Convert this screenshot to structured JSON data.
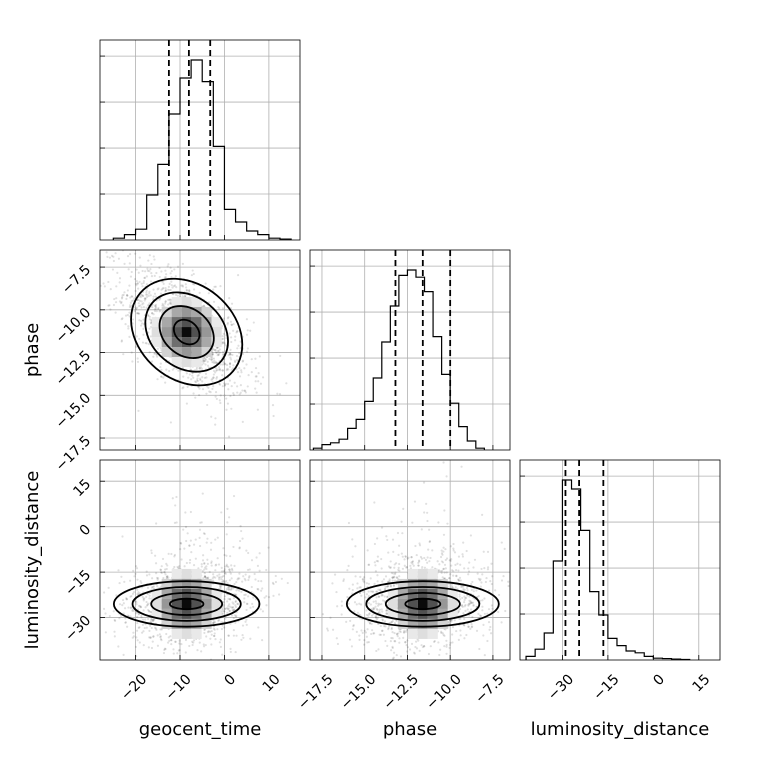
{
  "chart_data": {
    "type": "corner",
    "parameters": [
      "geocent_time",
      "phase",
      "luminosity_distance"
    ],
    "axes": {
      "geocent_time": {
        "range": [
          -28,
          17
        ],
        "ticks": [
          -20,
          -10,
          0,
          10
        ],
        "tick_labels": [
          "−20",
          "−10",
          "0",
          "10"
        ]
      },
      "phase": {
        "range": [
          -18.2,
          -6.5
        ],
        "ticks": [
          -17.5,
          -15.0,
          -12.5,
          -10.0,
          -7.5
        ],
        "tick_labels": [
          "−17.5",
          "−15.0",
          "−12.5",
          "−10.0",
          "−7.5"
        ]
      },
      "luminosity_distance": {
        "range": [
          -44,
          22
        ],
        "ticks": [
          -30,
          -15,
          0,
          15
        ],
        "tick_labels": [
          "−30",
          "−15",
          "0",
          "15"
        ]
      }
    },
    "histograms": [
      {
        "parameter": "geocent_time",
        "bin_edges": [
          -25,
          -22.5,
          -20,
          -17.5,
          -15,
          -12.5,
          -10,
          -7.5,
          -5,
          -2.5,
          0,
          2.5,
          5,
          7.5,
          10,
          12.5,
          15
        ],
        "counts": [
          0.01,
          0.03,
          0.06,
          0.25,
          0.42,
          0.7,
          0.9,
          1.0,
          0.88,
          0.52,
          0.17,
          0.1,
          0.05,
          0.03,
          0.01,
          0.005
        ],
        "quantiles": [
          -12.5,
          -8.0,
          -3.2
        ]
      },
      {
        "parameter": "phase",
        "bin_edges": [
          -18,
          -17.5,
          -17,
          -16.5,
          -16,
          -15.5,
          -15,
          -14.5,
          -14,
          -13.5,
          -13,
          -12.5,
          -12,
          -11.5,
          -11,
          -10.5,
          -10,
          -9.5,
          -9,
          -8.5,
          -8
        ],
        "counts": [
          0.01,
          0.03,
          0.04,
          0.06,
          0.12,
          0.17,
          0.27,
          0.4,
          0.6,
          0.8,
          0.97,
          1.0,
          0.96,
          0.88,
          0.63,
          0.42,
          0.26,
          0.13,
          0.05,
          0.01
        ],
        "quantiles": [
          -13.2,
          -11.6,
          -10.0
        ]
      },
      {
        "parameter": "luminosity_distance",
        "bin_edges": [
          -42,
          -39,
          -36,
          -33,
          -30,
          -27,
          -24,
          -21,
          -18,
          -15,
          -12,
          -9,
          -6,
          -3,
          0,
          3,
          6,
          9,
          12
        ],
        "counts": [
          0.02,
          0.06,
          0.15,
          0.55,
          1.0,
          0.95,
          0.72,
          0.38,
          0.25,
          0.12,
          0.08,
          0.05,
          0.04,
          0.02,
          0.01,
          0.008,
          0.005,
          0.003
        ],
        "quantiles": [
          -29.0,
          -24.5,
          -16.5
        ]
      }
    ],
    "scatter_2d": [
      {
        "x": "geocent_time",
        "y": "phase",
        "center": [
          -8.5,
          -11.3
        ],
        "spread": [
          7.0,
          1.9
        ],
        "correlation": -0.6
      },
      {
        "x": "geocent_time",
        "y": "luminosity_distance",
        "center": [
          -8.5,
          -25.5
        ],
        "spread": [
          7.0,
          7.0
        ],
        "correlation": 0.15
      },
      {
        "x": "phase",
        "y": "luminosity_distance",
        "center": [
          -11.6,
          -25.5
        ],
        "spread": [
          1.9,
          7.0
        ],
        "correlation": 0.15
      }
    ],
    "grid": true,
    "title": ""
  }
}
